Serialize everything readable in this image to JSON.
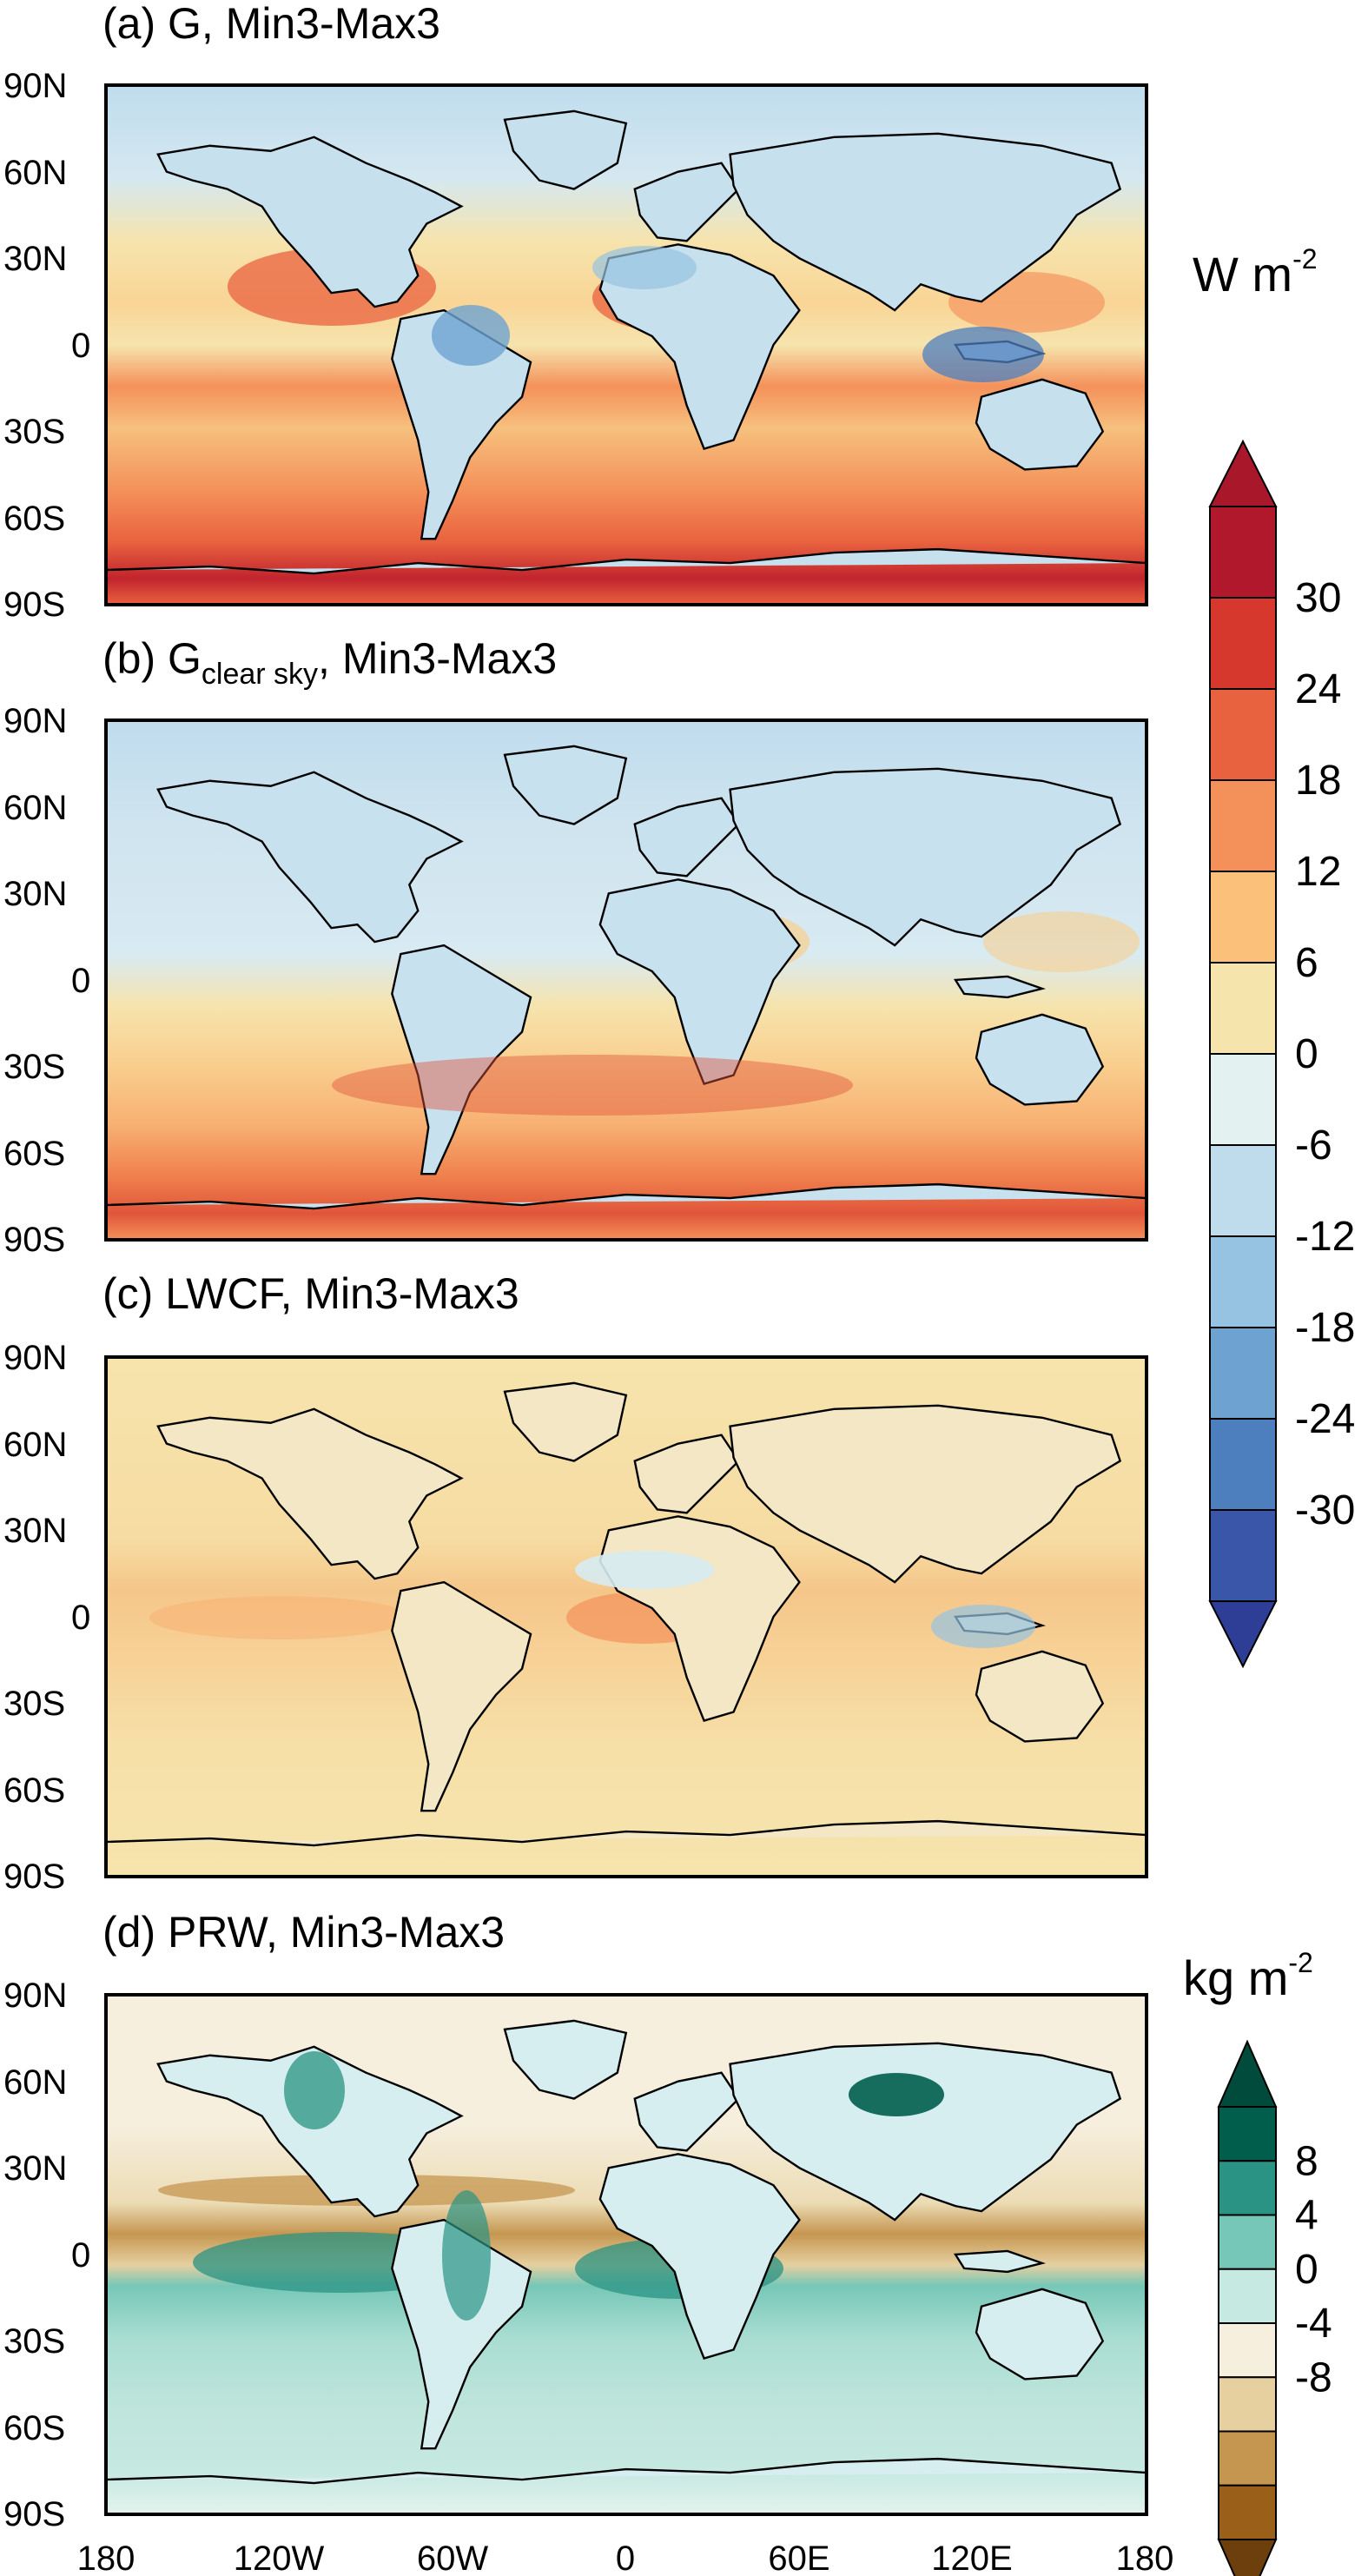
{
  "chart_data": [
    {
      "type": "heatmap",
      "panel": "a",
      "title": "(a) G, Min3-Max3",
      "y_ticks": [
        "90N",
        "60N",
        "30N",
        "0",
        "30S",
        "60S",
        "90S"
      ],
      "x_ticks": [],
      "colorbar": "W m-2"
    },
    {
      "type": "heatmap",
      "panel": "b",
      "title_prefix": "(b) G",
      "title_subscript": "clear sky",
      "title_suffix": ", Min3-Max3",
      "y_ticks": [
        "90N",
        "60N",
        "30N",
        "0",
        "30S",
        "60S",
        "90S"
      ],
      "x_ticks": [],
      "colorbar": "W m-2"
    },
    {
      "type": "heatmap",
      "panel": "c",
      "title": "(c) LWCF, Min3-Max3",
      "y_ticks": [
        "90N",
        "60N",
        "30N",
        "0",
        "30S",
        "60S",
        "90S"
      ],
      "x_ticks": [],
      "colorbar": "W m-2"
    },
    {
      "type": "heatmap",
      "panel": "d",
      "title": "(d) PRW, Min3-Max3",
      "y_ticks": [
        "90N",
        "60N",
        "30N",
        "0",
        "30S",
        "60S",
        "90S"
      ],
      "x_ticks": [
        "180",
        "120W",
        "60W",
        "0",
        "60E",
        "120E",
        "180"
      ],
      "colorbar": "kg m-2"
    }
  ],
  "colorbars": {
    "radiation": {
      "unit_base": "W m",
      "unit_exp": "-2",
      "levels": [
        30,
        24,
        18,
        12,
        6,
        0,
        -6,
        -12,
        -18,
        -24,
        -30
      ],
      "colors": [
        "#b2182b",
        "#d6382e",
        "#e9623f",
        "#f4915a",
        "#fbc07a",
        "#f6e4ad",
        "#e4f1f1",
        "#bfdced",
        "#96c3e1",
        "#6ea3d1",
        "#4d7fbf",
        "#3a56a8"
      ],
      "over_color": "#a8172a",
      "under_color": "#2e3e96"
    },
    "prw": {
      "unit_base": "kg m",
      "unit_exp": "-2",
      "levels": [
        8,
        4,
        0,
        -4,
        -8
      ],
      "colors": [
        "#015e4d",
        "#2a9383",
        "#76c7b7",
        "#c6e9e1",
        "#f6efde",
        "#e6d0a0",
        "#c59650",
        "#9a6019"
      ],
      "over_color": "#004b3c",
      "under_color": "#6c3f0c"
    }
  },
  "map_colors": {
    "ocean_a": "#f4a46a",
    "ocean_b": "#f7c48c",
    "ocean_c": "#f6dcb0",
    "ocean_d": "#bfe5dc",
    "land_a": "#c6e0ee",
    "land_b": "#c7e1ef",
    "land_c": "#f3e7c6",
    "land_d": "#d7eef0"
  }
}
